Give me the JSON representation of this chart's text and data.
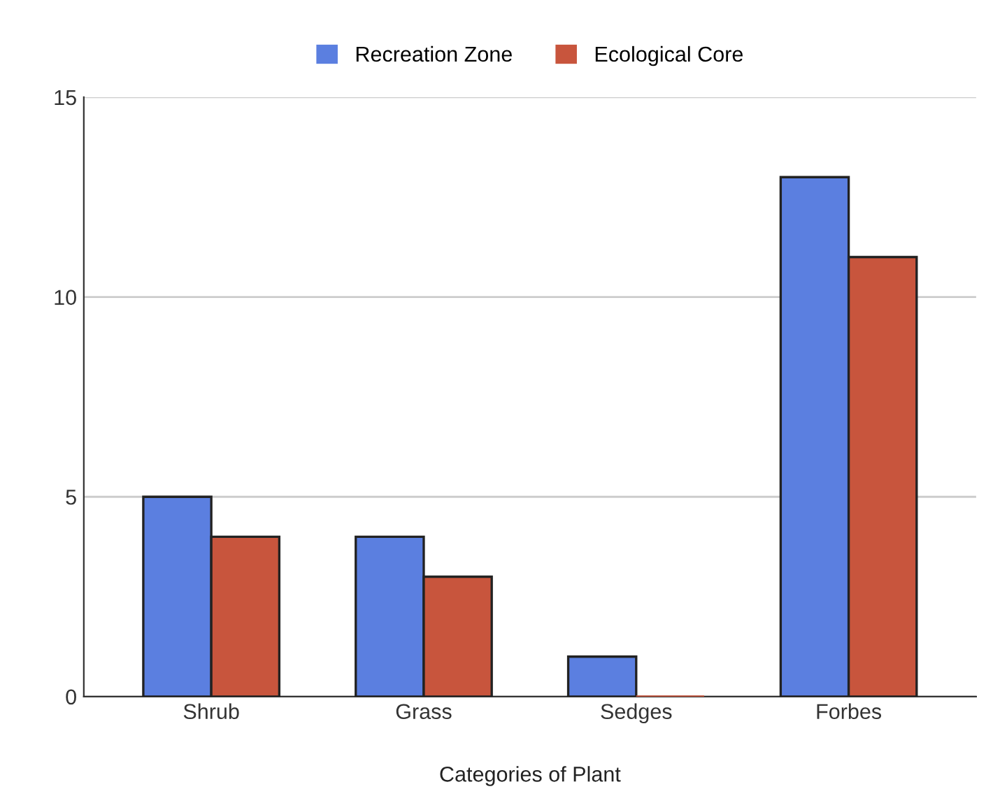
{
  "chart_data": {
    "type": "bar",
    "xlabel": "Categories of Plant",
    "categories": [
      "Shrub",
      "Grass",
      "Sedges",
      "Forbes"
    ],
    "series": [
      {
        "name": "Recreation Zone",
        "color": "#5b7fe0",
        "values": [
          5,
          4,
          1,
          13
        ]
      },
      {
        "name": "Ecological Core",
        "color": "#c8553d",
        "values": [
          4,
          3,
          0,
          11
        ]
      }
    ],
    "ylim": [
      0,
      15
    ],
    "yticks": [
      0,
      5,
      10,
      15
    ],
    "grid": "y",
    "legend": "top"
  }
}
